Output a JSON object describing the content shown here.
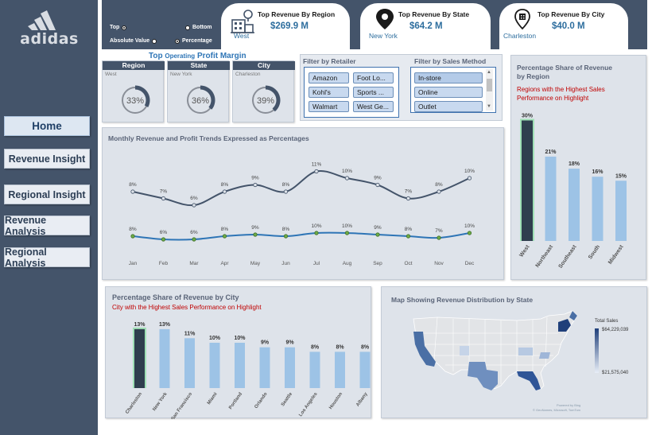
{
  "brand": {
    "logo_text": "adidas"
  },
  "nav": [
    {
      "label": "Home",
      "active": true
    },
    {
      "label": "Revenue Insight"
    },
    {
      "label": "Regional Insight"
    },
    {
      "label": "Revenue Analysis"
    },
    {
      "label": "Regional Analysis"
    }
  ],
  "options": {
    "top": "Top",
    "bottom": "Bottom",
    "absolute_value": "Absolute Value",
    "percentage": "Percentage"
  },
  "kpis": [
    {
      "title": "Top Revenue By Region",
      "value": "$269.9 M",
      "sub": "West",
      "icon": "building-icon"
    },
    {
      "title": "Top Revenue By State",
      "value": "$64.2 M",
      "sub": "New York",
      "icon": "location-pin-icon"
    },
    {
      "title": "Top Revenue By City",
      "value": "$40.0 M",
      "sub": "Charleston",
      "icon": "city-pin-icon"
    }
  ],
  "profit_margin": {
    "title_a": "Top",
    "title_b": "Operating",
    "title_c": "Profit Margin",
    "cards": [
      {
        "head": "Region",
        "place": "West",
        "value": "33%",
        "pct": 33
      },
      {
        "head": "State",
        "place": "New York",
        "value": "36%",
        "pct": 36
      },
      {
        "head": "City",
        "place": "Charleston",
        "value": "39%",
        "pct": 39
      }
    ]
  },
  "filters": {
    "retailer_title": "Filter by Retailer",
    "retailers": [
      "Amazon",
      "Foot Lo...",
      "Kohl's",
      "Sports ...",
      "Walmart",
      "West Ge..."
    ],
    "method_title": "Filter by Sales Method",
    "methods": [
      "In-store",
      "Online",
      "Outlet"
    ]
  },
  "trend": {
    "title": "Monthly Revenue and Profit Trends Expressed as Percentages",
    "colors": {
      "revenue": "#44546a",
      "profit": "#2e75b6",
      "marker": "#70ad47"
    }
  },
  "region_share": {
    "title_line1": "Percentage Share of Revenue",
    "title_line2": "by Region",
    "subtitle_line1": "Regions with the Highest Sales",
    "subtitle_line2": "Performance on Highlight"
  },
  "city_share": {
    "title": "Percentage Share of Revenue by City",
    "subtitle": "City with the Highest Sales Performance on Highlight"
  },
  "map": {
    "title": "Map Showing Revenue Distribution by State",
    "legend_title": "Total Sales",
    "legend_max": "$64,229,039",
    "legend_min": "$21,575,040",
    "credit_line1": "Powered by Bing",
    "credit_line2": "© GeoNames, Microsoft, TomTom"
  },
  "chart_data": [
    {
      "type": "line",
      "x": [
        "Jan",
        "Feb",
        "Mar",
        "Apr",
        "May",
        "Jun",
        "Jul",
        "Aug",
        "Sep",
        "Oct",
        "Nov",
        "Dec"
      ],
      "series": [
        {
          "values": [
            8,
            7,
            6,
            8,
            9,
            8,
            11,
            10,
            9,
            7,
            8,
            10
          ]
        },
        {
          "values": [
            8,
            6,
            6,
            8,
            9,
            8,
            10,
            10,
            9,
            8,
            7,
            10
          ]
        }
      ]
    },
    {
      "type": "bar",
      "categories": [
        "West",
        "Northeast",
        "Southeast",
        "South",
        "Midwest"
      ],
      "values": [
        30,
        21,
        18,
        16,
        15
      ],
      "highlight": "West"
    },
    {
      "type": "bar",
      "categories": [
        "Charleston",
        "New York",
        "San Francisco",
        "Miami",
        "Portland",
        "Orlando",
        "Seattle",
        "Los Angeles",
        "Houston",
        "Albany"
      ],
      "values": [
        13,
        13,
        11,
        10,
        10,
        9,
        9,
        8,
        8,
        8
      ],
      "highlight": "Charleston"
    }
  ]
}
